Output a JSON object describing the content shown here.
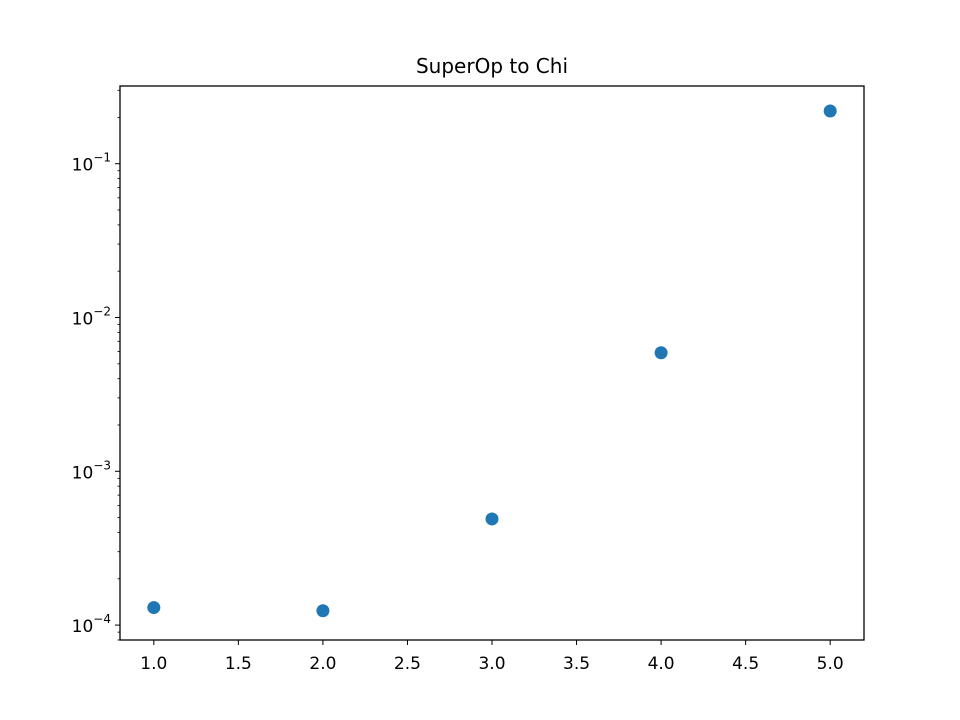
{
  "chart_data": {
    "type": "scatter",
    "title": "SuperOp to Chi",
    "xlabel": "",
    "ylabel": "",
    "xlim": [
      0.8,
      5.2
    ],
    "ylim": [
      8e-05,
      0.32
    ],
    "yscale": "log",
    "grid": false,
    "x_ticks": [
      1.0,
      1.5,
      2.0,
      2.5,
      3.0,
      3.5,
      4.0,
      4.5,
      5.0
    ],
    "x_tick_labels": [
      "1.0",
      "1.5",
      "2.0",
      "2.5",
      "3.0",
      "3.5",
      "4.0",
      "4.5",
      "5.0"
    ],
    "y_ticks": [
      0.0001,
      0.001,
      0.01,
      0.1
    ],
    "y_tick_labels": [
      {
        "base": "10",
        "exp": "−4"
      },
      {
        "base": "10",
        "exp": "−3"
      },
      {
        "base": "10",
        "exp": "−2"
      },
      {
        "base": "10",
        "exp": "−1"
      }
    ],
    "series": [
      {
        "color": "#1f77b4",
        "points": [
          {
            "x": 1,
            "y": 0.00013
          },
          {
            "x": 2,
            "y": 0.000124
          },
          {
            "x": 3,
            "y": 0.00049
          },
          {
            "x": 4,
            "y": 0.0059
          },
          {
            "x": 5,
            "y": 0.22
          }
        ]
      }
    ]
  }
}
